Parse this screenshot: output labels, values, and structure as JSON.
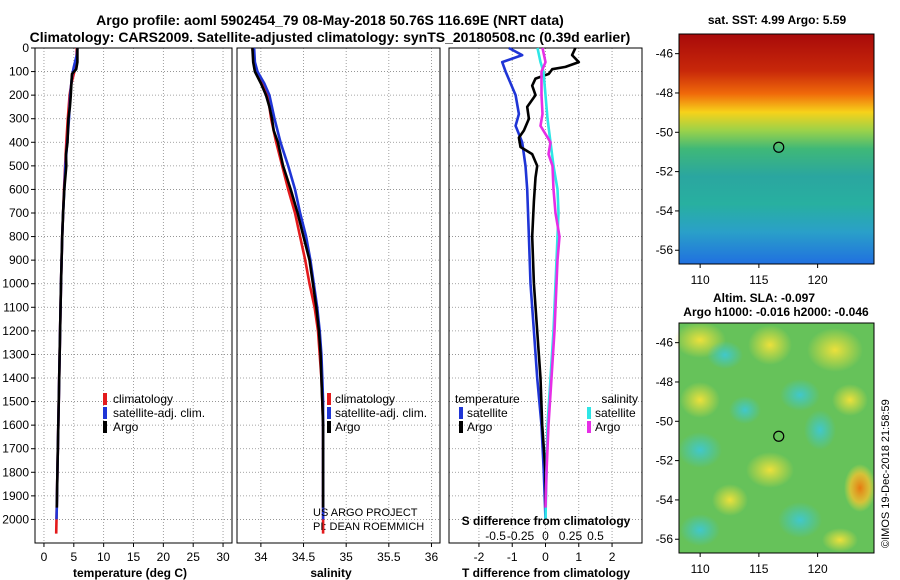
{
  "header": {
    "title_line1": "Argo profile: aoml 5902454_79 08-May-2018 50.76S 116.69E (NRT data)",
    "title_line2": "Climatology: CARS2009. Satellite-adjusted climatology: synTS_20180508.nc (0.39d earlier)"
  },
  "credits": {
    "project": "US ARGO PROJECT",
    "pi": "PI: DEAN ROEMMICH",
    "imos": "©IMOS 19-Dec-2018 21:58:59"
  },
  "colors": {
    "climatology": "#e31a1c",
    "satellite_adj": "#1f35d6",
    "argo": "#000000",
    "salinity_satellite": "#2ee6e6",
    "salinity_argo": "#e62ee6"
  },
  "chart_data": [
    {
      "id": "temperature",
      "type": "line",
      "xlabel": "temperature (deg C)",
      "ylabel": "",
      "xlim": [
        -1.5,
        31.5
      ],
      "ylim": [
        2100,
        0
      ],
      "xticks": [
        0,
        5,
        10,
        15,
        20,
        25,
        30
      ],
      "xtick_labels": [
        "0",
        "5",
        "10",
        "15",
        "20",
        "25",
        "30"
      ],
      "yticks": [
        0,
        100,
        200,
        300,
        400,
        500,
        600,
        700,
        800,
        900,
        1000,
        1100,
        1200,
        1300,
        1400,
        1500,
        1600,
        1700,
        1800,
        1900,
        2000
      ],
      "ytick_labels": [
        "0",
        "100",
        "200",
        "300",
        "400",
        "500",
        "600",
        "700",
        "800",
        "900",
        "1000",
        "1100",
        "1200",
        "1300",
        "1400",
        "1500",
        "1600",
        "1700",
        "1800",
        "1900",
        "2000"
      ],
      "legend": {
        "position": "lower-right",
        "entries": [
          "climatology",
          "satellite-adj. clim.",
          "Argo"
        ]
      },
      "series": [
        {
          "name": "climatology",
          "color_key": "climatology",
          "points": [
            [
              5.5,
              0
            ],
            [
              5.4,
              60
            ],
            [
              5.1,
              100
            ],
            [
              4.6,
              150
            ],
            [
              4.3,
              200
            ],
            [
              4.0,
              300
            ],
            [
              3.75,
              400
            ],
            [
              3.55,
              500
            ],
            [
              3.35,
              600
            ],
            [
              3.2,
              700
            ],
            [
              3.05,
              800
            ],
            [
              2.95,
              900
            ],
            [
              2.85,
              1000
            ],
            [
              2.7,
              1200
            ],
            [
              2.55,
              1400
            ],
            [
              2.4,
              1600
            ],
            [
              2.25,
              1800
            ],
            [
              2.1,
              2000
            ],
            [
              2.05,
              2060
            ]
          ]
        },
        {
          "name": "satellite-adj. clim.",
          "color_key": "satellite_adj",
          "points": [
            [
              5.6,
              0
            ],
            [
              5.5,
              30
            ],
            [
              5.2,
              60
            ],
            [
              5.0,
              80
            ],
            [
              4.7,
              120
            ],
            [
              4.4,
              200
            ],
            [
              4.2,
              300
            ],
            [
              3.9,
              400
            ],
            [
              3.6,
              500
            ],
            [
              3.4,
              600
            ],
            [
              3.2,
              700
            ],
            [
              3.05,
              800
            ],
            [
              2.95,
              900
            ],
            [
              2.85,
              1000
            ],
            [
              2.7,
              1200
            ],
            [
              2.55,
              1400
            ],
            [
              2.4,
              1600
            ],
            [
              2.25,
              1800
            ],
            [
              2.15,
              1950
            ],
            [
              2.1,
              2000
            ]
          ]
        },
        {
          "name": "Argo",
          "color_key": "argo",
          "points": [
            [
              5.6,
              0
            ],
            [
              5.6,
              60
            ],
            [
              5.4,
              90
            ],
            [
              4.7,
              110
            ],
            [
              4.6,
              150
            ],
            [
              4.5,
              200
            ],
            [
              4.35,
              250
            ],
            [
              4.1,
              300
            ],
            [
              3.95,
              400
            ],
            [
              3.7,
              450
            ],
            [
              3.75,
              500
            ],
            [
              3.4,
              600
            ],
            [
              3.2,
              700
            ],
            [
              3.05,
              800
            ],
            [
              2.95,
              900
            ],
            [
              2.85,
              1000
            ],
            [
              2.7,
              1200
            ],
            [
              2.55,
              1400
            ],
            [
              2.4,
              1600
            ],
            [
              2.25,
              1800
            ],
            [
              2.15,
              1950
            ]
          ]
        }
      ]
    },
    {
      "id": "salinity",
      "type": "line",
      "xlabel": "salinity",
      "xlim": [
        33.72,
        36.1
      ],
      "ylim": [
        2100,
        0
      ],
      "xticks": [
        34,
        34.5,
        35,
        35.5,
        36
      ],
      "xtick_labels": [
        "34",
        "34.5",
        "35",
        "35.5",
        "36"
      ],
      "legend": {
        "position": "lower-right",
        "entries": [
          "climatology",
          "satellite-adj. clim.",
          "Argo"
        ]
      },
      "series": [
        {
          "name": "climatology",
          "color_key": "climatology",
          "points": [
            [
              33.9,
              0
            ],
            [
              33.92,
              60
            ],
            [
              33.95,
              100
            ],
            [
              34.03,
              150
            ],
            [
              34.08,
              200
            ],
            [
              34.12,
              300
            ],
            [
              34.18,
              400
            ],
            [
              34.25,
              500
            ],
            [
              34.32,
              600
            ],
            [
              34.4,
              700
            ],
            [
              34.46,
              800
            ],
            [
              34.52,
              900
            ],
            [
              34.57,
              1000
            ],
            [
              34.63,
              1100
            ],
            [
              34.67,
              1200
            ],
            [
              34.69,
              1300
            ],
            [
              34.71,
              1400
            ],
            [
              34.72,
              1500
            ],
            [
              34.73,
              1600
            ],
            [
              34.73,
              1800
            ],
            [
              34.73,
              2000
            ],
            [
              34.73,
              2060
            ]
          ]
        },
        {
          "name": "satellite-adj. clim.",
          "color_key": "satellite_adj",
          "points": [
            [
              33.92,
              0
            ],
            [
              33.93,
              60
            ],
            [
              33.96,
              100
            ],
            [
              34.04,
              150
            ],
            [
              34.1,
              200
            ],
            [
              34.16,
              300
            ],
            [
              34.23,
              400
            ],
            [
              34.32,
              500
            ],
            [
              34.4,
              600
            ],
            [
              34.46,
              700
            ],
            [
              34.53,
              800
            ],
            [
              34.58,
              900
            ],
            [
              34.62,
              1000
            ],
            [
              34.66,
              1100
            ],
            [
              34.69,
              1200
            ],
            [
              34.71,
              1300
            ],
            [
              34.72,
              1400
            ],
            [
              34.73,
              1500
            ],
            [
              34.73,
              1700
            ],
            [
              34.73,
              2000
            ]
          ]
        },
        {
          "name": "Argo",
          "color_key": "argo",
          "points": [
            [
              33.9,
              0
            ],
            [
              33.91,
              60
            ],
            [
              33.93,
              100
            ],
            [
              34.0,
              150
            ],
            [
              34.06,
              200
            ],
            [
              34.1,
              250
            ],
            [
              34.13,
              300
            ],
            [
              34.15,
              350
            ],
            [
              34.2,
              400
            ],
            [
              34.23,
              450
            ],
            [
              34.26,
              500
            ],
            [
              34.35,
              600
            ],
            [
              34.43,
              700
            ],
            [
              34.5,
              800
            ],
            [
              34.57,
              900
            ],
            [
              34.61,
              1000
            ],
            [
              34.65,
              1100
            ],
            [
              34.68,
              1200
            ],
            [
              34.7,
              1300
            ],
            [
              34.71,
              1400
            ],
            [
              34.72,
              1500
            ],
            [
              34.73,
              1600
            ],
            [
              34.73,
              1800
            ],
            [
              34.73,
              1950
            ]
          ]
        }
      ]
    },
    {
      "id": "differences",
      "type": "line",
      "xlabel": "T difference from climatology",
      "x2label": "S difference from climatology",
      "xlim": [
        -2.9,
        2.9
      ],
      "ylim": [
        2100,
        0
      ],
      "xticks": [
        -2,
        -1,
        0,
        1,
        2
      ],
      "xtick_labels": [
        "-2",
        "-1",
        "0",
        "1",
        "2"
      ],
      "x2ticks": [
        -0.5,
        -0.25,
        0,
        0.25,
        0.5
      ],
      "x2tick_labels": [
        "-0.5",
        "-0.25",
        "0",
        "0.25",
        "0.5"
      ],
      "legend_temperature": {
        "title": "temperature",
        "entries": [
          "satellite",
          "Argo"
        ]
      },
      "legend_salinity": {
        "title": "salinity",
        "entries": [
          "satellite",
          "Argo"
        ]
      },
      "series": [
        {
          "name": "temperature satellite",
          "color_key": "satellite_adj",
          "points": [
            [
              -1.1,
              0
            ],
            [
              -0.7,
              30
            ],
            [
              -1.3,
              60
            ],
            [
              -1.2,
              100
            ],
            [
              -0.9,
              200
            ],
            [
              -0.8,
              280
            ],
            [
              -0.9,
              330
            ],
            [
              -0.7,
              400
            ],
            [
              -0.6,
              500
            ],
            [
              -0.55,
              600
            ],
            [
              -0.5,
              800
            ],
            [
              -0.45,
              1000
            ],
            [
              -0.35,
              1200
            ],
            [
              -0.25,
              1400
            ],
            [
              -0.12,
              1600
            ],
            [
              -0.05,
              1800
            ],
            [
              0.0,
              2000
            ]
          ]
        },
        {
          "name": "temperature Argo",
          "color_key": "argo",
          "points": [
            [
              0.9,
              0
            ],
            [
              0.8,
              30
            ],
            [
              1.0,
              60
            ],
            [
              0.6,
              80
            ],
            [
              0.2,
              90
            ],
            [
              0.1,
              110
            ],
            [
              -0.3,
              130
            ],
            [
              -0.4,
              160
            ],
            [
              -0.3,
              200
            ],
            [
              -0.55,
              250
            ],
            [
              -0.5,
              300
            ],
            [
              -0.65,
              350
            ],
            [
              -0.8,
              380
            ],
            [
              -0.75,
              420
            ],
            [
              -0.4,
              450
            ],
            [
              -0.25,
              500
            ],
            [
              -0.3,
              550
            ],
            [
              -0.35,
              650
            ],
            [
              -0.4,
              800
            ],
            [
              -0.35,
              1000
            ],
            [
              -0.25,
              1200
            ],
            [
              -0.15,
              1400
            ],
            [
              -0.1,
              1600
            ],
            [
              0.0,
              1800
            ],
            [
              0.0,
              1950
            ]
          ]
        },
        {
          "name": "salinity satellite",
          "color_key": "salinity_satellite",
          "points": [
            [
              -0.08,
              0
            ],
            [
              -0.05,
              60
            ],
            [
              -0.02,
              100
            ],
            [
              0.0,
              200
            ],
            [
              0.02,
              300
            ],
            [
              0.05,
              400
            ],
            [
              0.08,
              500
            ],
            [
              0.12,
              600
            ],
            [
              0.13,
              700
            ],
            [
              0.12,
              800
            ],
            [
              0.1,
              1000
            ],
            [
              0.08,
              1200
            ],
            [
              0.05,
              1400
            ],
            [
              0.02,
              1600
            ],
            [
              0.01,
              1800
            ],
            [
              0.0,
              2000
            ]
          ]
        },
        {
          "name": "salinity Argo",
          "color_key": "salinity_argo",
          "points": [
            [
              -0.03,
              0
            ],
            [
              0.0,
              60
            ],
            [
              -0.04,
              100
            ],
            [
              -0.04,
              200
            ],
            [
              -0.03,
              280
            ],
            [
              -0.05,
              330
            ],
            [
              0.05,
              400
            ],
            [
              0.03,
              450
            ],
            [
              0.07,
              500
            ],
            [
              0.08,
              600
            ],
            [
              0.1,
              700
            ],
            [
              0.14,
              800
            ],
            [
              0.12,
              900
            ],
            [
              0.11,
              1000
            ],
            [
              0.09,
              1200
            ],
            [
              0.06,
              1400
            ],
            [
              0.03,
              1600
            ],
            [
              0.01,
              1800
            ],
            [
              0.0,
              1950
            ]
          ]
        }
      ]
    },
    {
      "id": "sst_map",
      "type": "heatmap",
      "title": "sat. SST: 4.99 Argo: 5.59",
      "xticks": [
        110,
        115,
        120
      ],
      "xtick_labels": [
        "110",
        "115",
        "120"
      ],
      "yticks": [
        -46,
        -48,
        -50,
        -52,
        -54,
        -56
      ],
      "ytick_labels": [
        "-46",
        "-48",
        "-50",
        "-52",
        "-54",
        "-56"
      ],
      "xlim": [
        108.2,
        124.8
      ],
      "ylim": [
        -56.7,
        -45.0
      ],
      "marker": {
        "lon": 116.69,
        "lat": -50.76
      }
    },
    {
      "id": "sla_map",
      "type": "heatmap",
      "title_line1": "Altim. SLA: -0.097",
      "title_line2": "Argo h1000: -0.016 h2000: -0.046",
      "xticks": [
        110,
        115,
        120
      ],
      "xtick_labels": [
        "110",
        "115",
        "120"
      ],
      "yticks": [
        -46,
        -48,
        -50,
        -52,
        -54,
        -56
      ],
      "ytick_labels": [
        "-46",
        "-48",
        "-50",
        "-52",
        "-54",
        "-56"
      ],
      "xlim": [
        108.2,
        124.8
      ],
      "ylim": [
        -56.7,
        -45.0
      ],
      "marker": {
        "lon": 116.69,
        "lat": -50.76
      }
    }
  ]
}
